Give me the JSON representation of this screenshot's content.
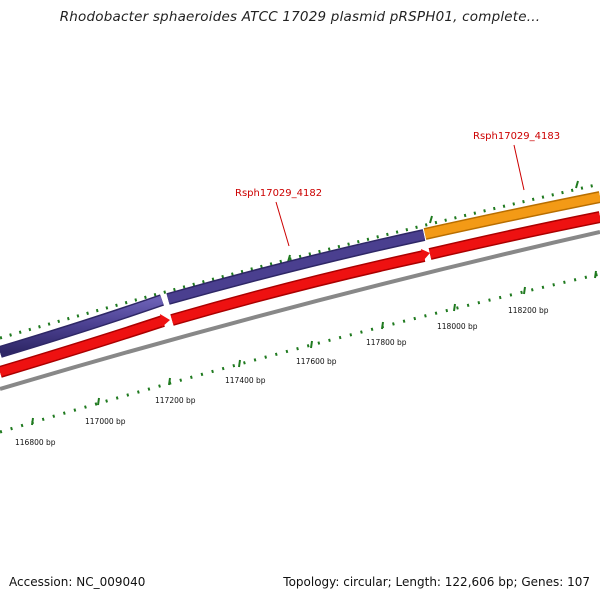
{
  "title": "Rhodobacter sphaeroides ATCC 17029 plasmid pRSPH01, complete...",
  "accession_label": "Accession:",
  "accession": "NC_009040",
  "topology_text": "Topology: circular; Length: 122,606 bp; Genes: 107",
  "gene_labels": [
    "Rsph17029_4182",
    "Rsph17029_4183"
  ],
  "position_labels": [
    "116800 bp",
    "117000 bp",
    "117200 bp",
    "117400 bp",
    "117600 bp",
    "117800 bp",
    "118000 bp",
    "118200 bp"
  ],
  "colors": {
    "gene_4182": "#4a3f8f",
    "gene_4183": "#f39a16",
    "cds": "#ee1111",
    "backbone": "#888888",
    "ticks": "#1f7a1f",
    "label": "#cc0000"
  }
}
